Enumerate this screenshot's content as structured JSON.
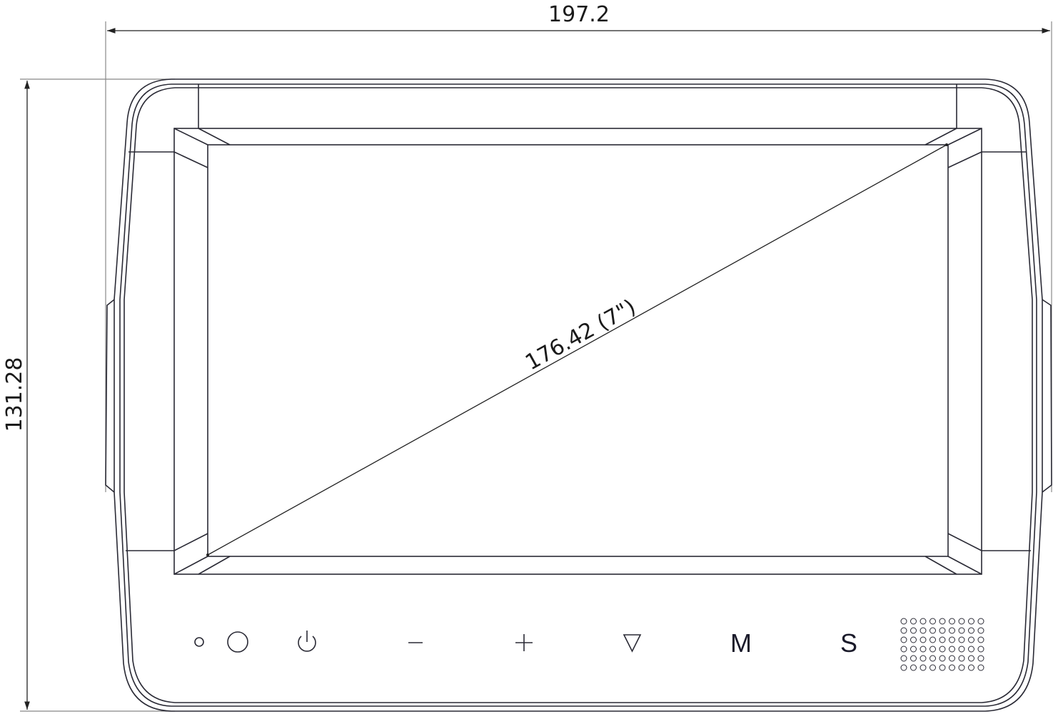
{
  "dimensions": {
    "width": "197.2",
    "height": "131.28",
    "diagonal": "176.42 (7\")"
  },
  "buttons": [
    {
      "icon": "led-indicator-icon"
    },
    {
      "icon": "sensor-icon"
    },
    {
      "icon": "power-icon"
    },
    {
      "label": "−",
      "icon": "minus-icon"
    },
    {
      "label": "+",
      "icon": "plus-icon"
    },
    {
      "icon": "down-triangle-icon"
    },
    {
      "label": "M"
    },
    {
      "label": "S"
    }
  ],
  "speaker_grid": {
    "columns": 9,
    "rows": 6
  }
}
